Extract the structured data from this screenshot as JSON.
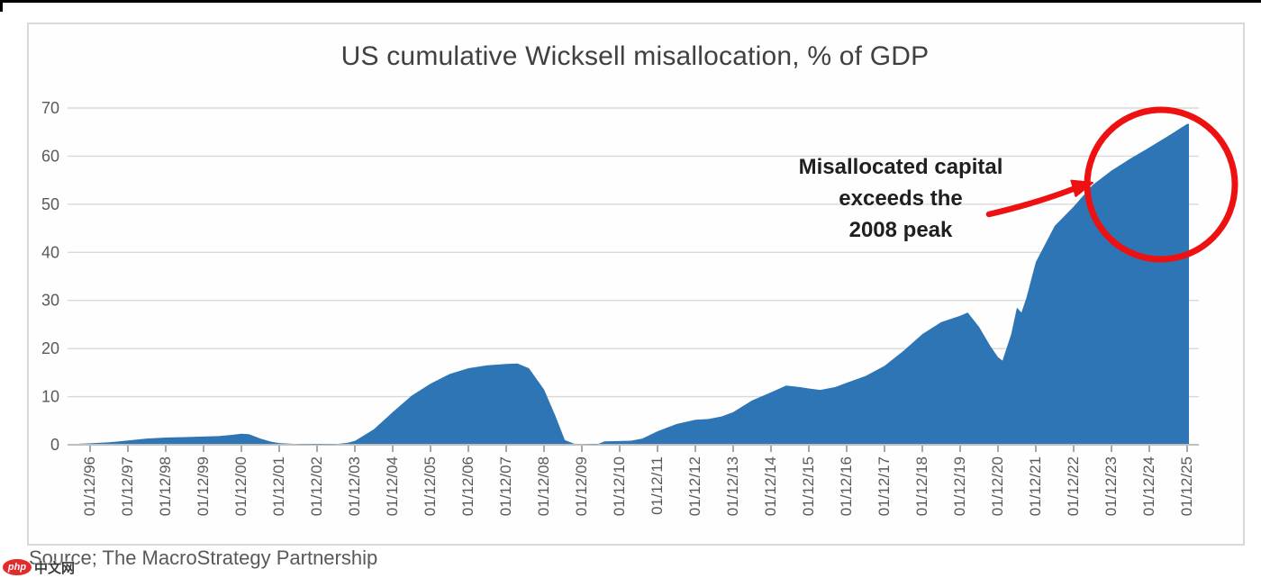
{
  "title": "US cumulative Wicksell misallocation, % of GDP",
  "source": "Source; The MacroStrategy Partnership",
  "watermark": {
    "logo_text": "php",
    "site_text": "中文网"
  },
  "annotation": {
    "lines": [
      "Misallocated capital",
      "exceeds the",
      "2008 peak"
    ]
  },
  "colors": {
    "area_fill": "#2e75b6",
    "red_accent": "#ee1111",
    "gridline": "#d9d9d9",
    "axis_line": "#bfbfbf",
    "tick_mark": "#8c8c8c",
    "tick_text": "#595959",
    "title_text": "#404040",
    "annotation_text": "#1f1f1f",
    "frame_border": "#d9d9d9"
  },
  "chart_data": {
    "type": "area",
    "title": "US cumulative Wicksell misallocation, % of GDP",
    "xlabel": "",
    "ylabel": "",
    "ylim": [
      0,
      70
    ],
    "y_ticks": [
      0,
      10,
      20,
      30,
      40,
      50,
      60,
      70
    ],
    "grid": "horizontal",
    "legend_position": "none",
    "x_tick_labels": [
      "01/12/96",
      "01/12/97",
      "01/12/98",
      "01/12/99",
      "01/12/00",
      "01/12/01",
      "01/12/02",
      "01/12/03",
      "01/12/04",
      "01/12/05",
      "01/12/06",
      "01/12/07",
      "01/12/08",
      "01/12/09",
      "01/12/10",
      "01/12/11",
      "01/12/12",
      "01/12/13",
      "01/12/14",
      "01/12/15",
      "01/12/16",
      "01/12/17",
      "01/12/18",
      "01/12/19",
      "01/12/20",
      "01/12/21",
      "01/12/22",
      "01/12/23",
      "01/12/24",
      "01/12/25"
    ],
    "series": [
      {
        "name": "US cumulative Wicksell misallocation, % of GDP",
        "points": [
          [
            1995.7,
            0.2
          ],
          [
            1996,
            0.3
          ],
          [
            1996.5,
            0.5
          ],
          [
            1997,
            0.9
          ],
          [
            1997.5,
            1.3
          ],
          [
            1998,
            1.5
          ],
          [
            1998.5,
            1.6
          ],
          [
            1999,
            1.7
          ],
          [
            1999.4,
            1.8
          ],
          [
            1999.8,
            2.1
          ],
          [
            2000.0,
            2.3
          ],
          [
            2000.2,
            2.2
          ],
          [
            2000.5,
            1.3
          ],
          [
            2000.8,
            0.6
          ],
          [
            2001,
            0.35
          ],
          [
            2001.5,
            0.15
          ],
          [
            2002,
            0.1
          ],
          [
            2002.5,
            0.15
          ],
          [
            2002.8,
            0.4
          ],
          [
            2003,
            0.8
          ],
          [
            2003.5,
            3.2
          ],
          [
            2004,
            6.8
          ],
          [
            2004.5,
            10.2
          ],
          [
            2005,
            12.7
          ],
          [
            2005.5,
            14.7
          ],
          [
            2006,
            15.9
          ],
          [
            2006.5,
            16.5
          ],
          [
            2007,
            16.8
          ],
          [
            2007.3,
            16.9
          ],
          [
            2007.6,
            15.9
          ],
          [
            2008,
            11.5
          ],
          [
            2008.3,
            6.0
          ],
          [
            2008.55,
            1.0
          ],
          [
            2008.8,
            0.2
          ],
          [
            2009.4,
            0.1
          ],
          [
            2009.6,
            0.7
          ],
          [
            2010.3,
            0.85
          ],
          [
            2010.6,
            1.3
          ],
          [
            2011,
            2.8
          ],
          [
            2011.5,
            4.3
          ],
          [
            2012,
            5.2
          ],
          [
            2012.35,
            5.35
          ],
          [
            2012.7,
            5.9
          ],
          [
            2013,
            6.8
          ],
          [
            2013.5,
            9.2
          ],
          [
            2014,
            10.9
          ],
          [
            2014.4,
            12.3
          ],
          [
            2014.75,
            12.0
          ],
          [
            2015,
            11.7
          ],
          [
            2015.3,
            11.4
          ],
          [
            2015.7,
            12.0
          ],
          [
            2016,
            12.9
          ],
          [
            2016.5,
            14.3
          ],
          [
            2017,
            16.4
          ],
          [
            2017.5,
            19.5
          ],
          [
            2018,
            23.0
          ],
          [
            2018.5,
            25.5
          ],
          [
            2019,
            26.8
          ],
          [
            2019.2,
            27.5
          ],
          [
            2019.5,
            24.5
          ],
          [
            2019.8,
            20.5
          ],
          [
            2020,
            18.2
          ],
          [
            2020.12,
            17.5
          ],
          [
            2020.35,
            23.0
          ],
          [
            2020.5,
            28.5
          ],
          [
            2020.62,
            27.5
          ],
          [
            2020.75,
            30.5
          ],
          [
            2021,
            38.0
          ],
          [
            2021.5,
            45.5
          ],
          [
            2022,
            49.5
          ],
          [
            2022.5,
            54.0
          ],
          [
            2023,
            57.0
          ],
          [
            2023.5,
            59.5
          ],
          [
            2024,
            61.8
          ],
          [
            2024.5,
            64.2
          ],
          [
            2025,
            66.7
          ]
        ]
      }
    ]
  }
}
